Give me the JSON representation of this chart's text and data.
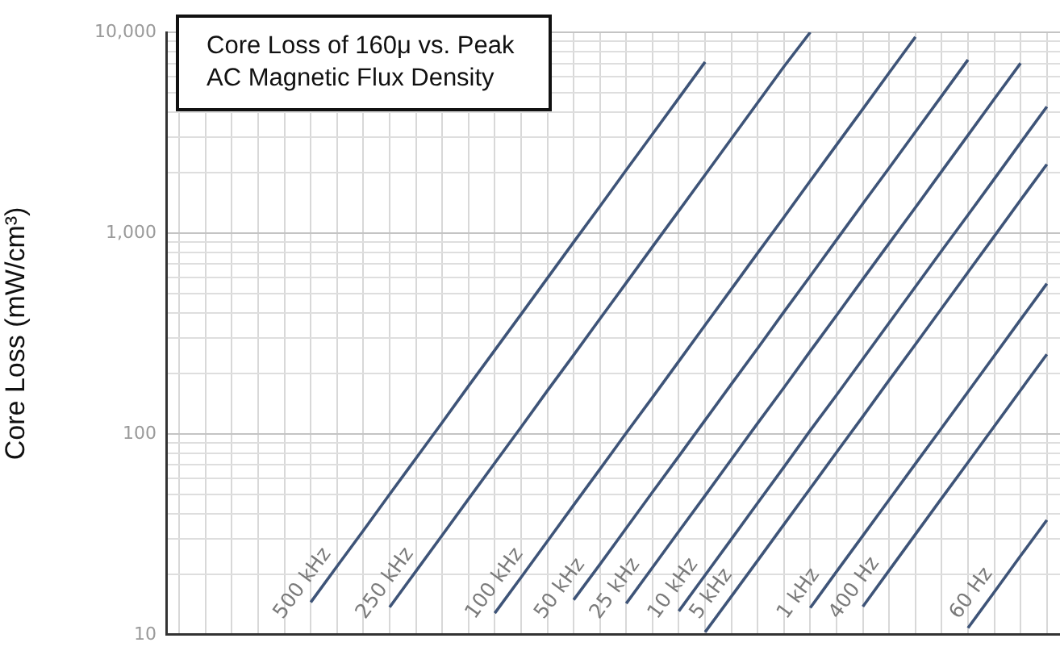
{
  "chart_data": {
    "type": "line",
    "title": "Core Loss of 160μ vs. Peak AC Magnetic Flux Density",
    "ylabel": "Core Loss (mW/cm³)",
    "log": "y",
    "grid": true,
    "legend": false,
    "marker": "none",
    "line_style": "solid",
    "tick_labels": "y",
    "ylim": [
      10,
      10000
    ],
    "yticks": [
      {
        "value": 10,
        "label": "10"
      },
      {
        "value": 20,
        "label": null
      },
      {
        "value": 30,
        "label": null
      },
      {
        "value": 40,
        "label": null
      },
      {
        "value": 50,
        "label": null
      },
      {
        "value": 60,
        "label": null
      },
      {
        "value": 70,
        "label": null
      },
      {
        "value": 80,
        "label": null
      },
      {
        "value": 90,
        "label": null
      },
      {
        "value": 100,
        "label": "100"
      },
      {
        "value": 200,
        "label": null
      },
      {
        "value": 300,
        "label": null
      },
      {
        "value": 400,
        "label": null
      },
      {
        "value": 500,
        "label": null
      },
      {
        "value": 600,
        "label": null
      },
      {
        "value": 700,
        "label": null
      },
      {
        "value": 800,
        "label": null
      },
      {
        "value": 900,
        "label": null
      },
      {
        "value": 1000,
        "label": "1,000"
      },
      {
        "value": 2000,
        "label": null
      },
      {
        "value": 3000,
        "label": null
      },
      {
        "value": 4000,
        "label": null
      },
      {
        "value": 5000,
        "label": null
      },
      {
        "value": 6000,
        "label": null
      },
      {
        "value": 7000,
        "label": null
      },
      {
        "value": 8000,
        "label": null
      },
      {
        "value": 9000,
        "label": null
      },
      {
        "value": 10000,
        "label": "10,000"
      }
    ],
    "categories": [
      null,
      null,
      null,
      null,
      null,
      null,
      null,
      null,
      null,
      null,
      null,
      null,
      null,
      null,
      null,
      null,
      null,
      null,
      null,
      null,
      null,
      null,
      null,
      null,
      null,
      null,
      null,
      null,
      null,
      null,
      null,
      null,
      null,
      null
    ],
    "series": [
      {
        "name": "500 kHz",
        "color": "#3e5478",
        "values": [
          null,
          null,
          null,
          null,
          null,
          14.5,
          21.9,
          33,
          50,
          75.5,
          114,
          173,
          261,
          394,
          596,
          902,
          1360,
          2060,
          3110,
          4700,
          7110,
          null,
          null,
          null,
          null,
          null,
          null,
          null,
          null,
          null,
          null,
          null,
          null,
          null
        ]
      },
      {
        "name": "250 kHz",
        "color": "#3e5478",
        "values": [
          null,
          null,
          null,
          null,
          null,
          null,
          null,
          null,
          13.7,
          20.7,
          31.3,
          47.4,
          71.6,
          108,
          164,
          247,
          374,
          565,
          855,
          1290,
          1950,
          2950,
          4460,
          6750,
          10000,
          null,
          null,
          null,
          null,
          null,
          null,
          null,
          null,
          null
        ]
      },
      {
        "name": "100 kHz",
        "color": "#3e5478",
        "values": [
          null,
          null,
          null,
          null,
          null,
          null,
          null,
          null,
          null,
          null,
          null,
          null,
          12.8,
          19.3,
          29.2,
          44.2,
          66.7,
          101,
          152,
          230,
          348,
          526,
          796,
          1200,
          1820,
          2750,
          4150,
          6280,
          9480,
          null,
          null,
          null,
          null,
          null
        ]
      },
      {
        "name": "50 kHz",
        "color": "#3e5478",
        "values": [
          null,
          null,
          null,
          null,
          null,
          null,
          null,
          null,
          null,
          null,
          null,
          null,
          null,
          null,
          null,
          14.9,
          22.4,
          33.9,
          51.3,
          77.4,
          117,
          177,
          267,
          405,
          611,
          925,
          1400,
          2110,
          3190,
          4820,
          7290,
          null,
          null,
          null
        ]
      },
      {
        "name": "25 kHz",
        "color": "#3e5478",
        "values": [
          null,
          null,
          null,
          null,
          null,
          null,
          null,
          null,
          null,
          null,
          null,
          null,
          null,
          null,
          null,
          null,
          null,
          14.3,
          21.6,
          32.7,
          49.3,
          74.6,
          113,
          170,
          258,
          389,
          589,
          889,
          1340,
          2030,
          3070,
          4650,
          7010,
          null
        ]
      },
      {
        "name": "10 kHz",
        "color": "#3e5478",
        "values": [
          null,
          null,
          null,
          null,
          null,
          null,
          null,
          null,
          null,
          null,
          null,
          null,
          null,
          null,
          null,
          null,
          null,
          null,
          null,
          13.1,
          19.8,
          29.9,
          45.3,
          68.4,
          104,
          156,
          236,
          357,
          540,
          817,
          1230,
          1860,
          2820,
          4260
        ]
      },
      {
        "name": "5 kHz",
        "color": "#3e5478",
        "values": [
          null,
          null,
          null,
          null,
          null,
          null,
          null,
          null,
          null,
          null,
          null,
          null,
          null,
          null,
          null,
          null,
          null,
          null,
          null,
          null,
          10.3,
          15.5,
          23.4,
          35.4,
          53.5,
          80.9,
          122,
          185,
          279,
          422,
          638,
          964,
          1460,
          2200
        ]
      },
      {
        "name": "1 kHz",
        "color": "#3e5478",
        "values": [
          null,
          null,
          null,
          null,
          null,
          null,
          null,
          null,
          null,
          null,
          null,
          null,
          null,
          null,
          null,
          null,
          null,
          null,
          null,
          null,
          null,
          null,
          null,
          null,
          13.6,
          20.6,
          31.1,
          47,
          71,
          107,
          162,
          245,
          371,
          560
        ]
      },
      {
        "name": "400 Hz",
        "color": "#3e5478",
        "values": [
          null,
          null,
          null,
          null,
          null,
          null,
          null,
          null,
          null,
          null,
          null,
          null,
          null,
          null,
          null,
          null,
          null,
          null,
          null,
          null,
          null,
          null,
          null,
          null,
          null,
          null,
          13.8,
          20.9,
          31.6,
          47.8,
          72.1,
          109,
          165,
          249
        ]
      },
      {
        "name": "60 Hz",
        "color": "#3e5478",
        "values": [
          null,
          null,
          null,
          null,
          null,
          null,
          null,
          null,
          null,
          null,
          null,
          null,
          null,
          null,
          null,
          null,
          null,
          null,
          null,
          null,
          null,
          null,
          null,
          null,
          null,
          null,
          null,
          null,
          null,
          null,
          10.8,
          16.3,
          24.7,
          37.2
        ]
      }
    ]
  }
}
